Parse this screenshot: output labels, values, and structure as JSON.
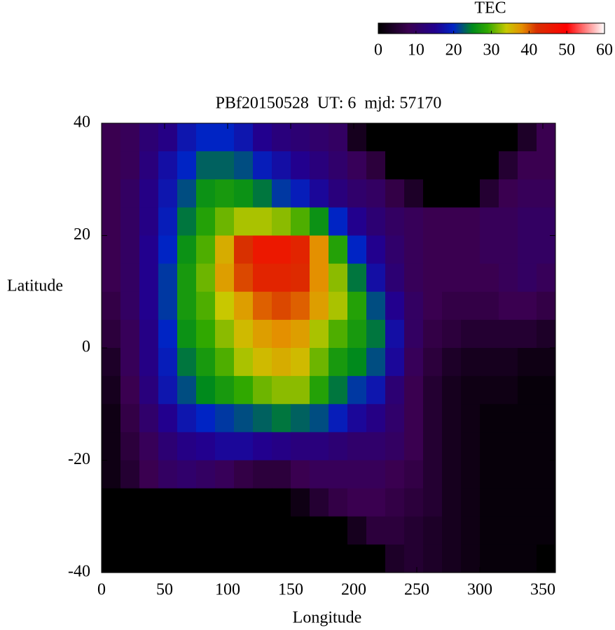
{
  "chart_data": {
    "type": "heatmap",
    "title": "PBf20150528  UT: 6  mjd: 57170",
    "xlabel": "Longitude",
    "ylabel": "Latitude",
    "colorbar_label": "TEC",
    "xlim": [
      0,
      360
    ],
    "ylim": [
      -40,
      40
    ],
    "xticks": [
      0,
      50,
      100,
      150,
      200,
      250,
      300,
      350
    ],
    "yticks": [
      -40,
      -20,
      0,
      20,
      40
    ],
    "clim": [
      0,
      60
    ],
    "cticks": [
      0,
      10,
      20,
      30,
      40,
      50,
      60
    ],
    "colorscale": [
      [
        0,
        "#000000"
      ],
      [
        8,
        "#3a0050"
      ],
      [
        15,
        "#22008e"
      ],
      [
        20,
        "#0024c4"
      ],
      [
        25,
        "#008a1c"
      ],
      [
        29,
        "#30a800"
      ],
      [
        34,
        "#c8c800"
      ],
      [
        38,
        "#e49000"
      ],
      [
        42,
        "#d83000"
      ],
      [
        50,
        "#ff0000"
      ],
      [
        60,
        "#ffffff"
      ]
    ],
    "x": [
      7.5,
      22.5,
      37.5,
      52.5,
      67.5,
      82.5,
      97.5,
      112.5,
      127.5,
      142.5,
      157.5,
      172.5,
      187.5,
      202.5,
      217.5,
      232.5,
      247.5,
      262.5,
      277.5,
      292.5,
      307.5,
      322.5,
      337.5,
      352.5
    ],
    "y": [
      37.5,
      32.5,
      27.5,
      22.5,
      17.5,
      12.5,
      7.5,
      2.5,
      -2.5,
      -7.5,
      -12.5,
      -17.5,
      -22.5,
      -27.5,
      -32.5,
      -37.5
    ],
    "values": [
      [
        8,
        9,
        12,
        14,
        18,
        20,
        20,
        18,
        15,
        13,
        12,
        11,
        10,
        3,
        0,
        0,
        0,
        0,
        0,
        0,
        0,
        0,
        4,
        8
      ],
      [
        8,
        9,
        13,
        17,
        20,
        23,
        23,
        22,
        19,
        17,
        15,
        13,
        11,
        9,
        6,
        0,
        0,
        0,
        0,
        0,
        0,
        5,
        8,
        8
      ],
      [
        8,
        10,
        14,
        18,
        22,
        26,
        27,
        26,
        24,
        21,
        19,
        16,
        13,
        11,
        10,
        7,
        4,
        0,
        0,
        0,
        5,
        8,
        9,
        9
      ],
      [
        8,
        10,
        14,
        19,
        24,
        28,
        31,
        33,
        33,
        32,
        30,
        26,
        20,
        15,
        12,
        10,
        9,
        8,
        8,
        8,
        9,
        9,
        10,
        10
      ],
      [
        8,
        10,
        15,
        20,
        26,
        30,
        36,
        42,
        46,
        46,
        44,
        38,
        28,
        20,
        15,
        11,
        9,
        8,
        8,
        8,
        9,
        9,
        10,
        10
      ],
      [
        8,
        10,
        15,
        21,
        27,
        31,
        37,
        41,
        44,
        44,
        43,
        38,
        32,
        24,
        17,
        12,
        9,
        8,
        8,
        8,
        8,
        9,
        10,
        9
      ],
      [
        7,
        10,
        15,
        21,
        27,
        30,
        34,
        37,
        40,
        41,
        40,
        37,
        33,
        28,
        22,
        15,
        10,
        8,
        7,
        7,
        7,
        8,
        8,
        7
      ],
      [
        6,
        9,
        14,
        20,
        26,
        29,
        32,
        35,
        37,
        38,
        37,
        33,
        30,
        27,
        24,
        17,
        10,
        7,
        6,
        5,
        5,
        5,
        5,
        4
      ],
      [
        4,
        9,
        14,
        19,
        24,
        27,
        30,
        33,
        35,
        36,
        35,
        31,
        27,
        25,
        22,
        16,
        9,
        6,
        4,
        3,
        3,
        3,
        2,
        2
      ],
      [
        3,
        8,
        13,
        18,
        22,
        25,
        27,
        29,
        31,
        32,
        32,
        28,
        24,
        21,
        18,
        12,
        8,
        5,
        3,
        2,
        2,
        2,
        1,
        1
      ],
      [
        2,
        7,
        11,
        15,
        18,
        20,
        21,
        22,
        23,
        24,
        23,
        22,
        19,
        16,
        14,
        11,
        8,
        5,
        3,
        2,
        1,
        1,
        1,
        1
      ],
      [
        2,
        6,
        9,
        12,
        14,
        15,
        16,
        16,
        15,
        14,
        13,
        13,
        12,
        11,
        11,
        10,
        8,
        5,
        3,
        2,
        1,
        1,
        1,
        1
      ],
      [
        2,
        5,
        8,
        10,
        11,
        10,
        9,
        7,
        6,
        6,
        8,
        9,
        9,
        9,
        9,
        8,
        7,
        5,
        3,
        2,
        1,
        1,
        1,
        1
      ],
      [
        0,
        0,
        0,
        0,
        0,
        0,
        0,
        0,
        0,
        0,
        2,
        5,
        7,
        8,
        8,
        7,
        6,
        5,
        3,
        2,
        1,
        1,
        1,
        1
      ],
      [
        0,
        0,
        0,
        0,
        0,
        0,
        0,
        0,
        0,
        0,
        0,
        0,
        0,
        3,
        6,
        6,
        5,
        4,
        3,
        2,
        1,
        1,
        1,
        1
      ],
      [
        0,
        0,
        0,
        0,
        0,
        0,
        0,
        0,
        0,
        0,
        0,
        0,
        0,
        0,
        0,
        4,
        5,
        4,
        3,
        2,
        1,
        1,
        1,
        0
      ]
    ]
  }
}
